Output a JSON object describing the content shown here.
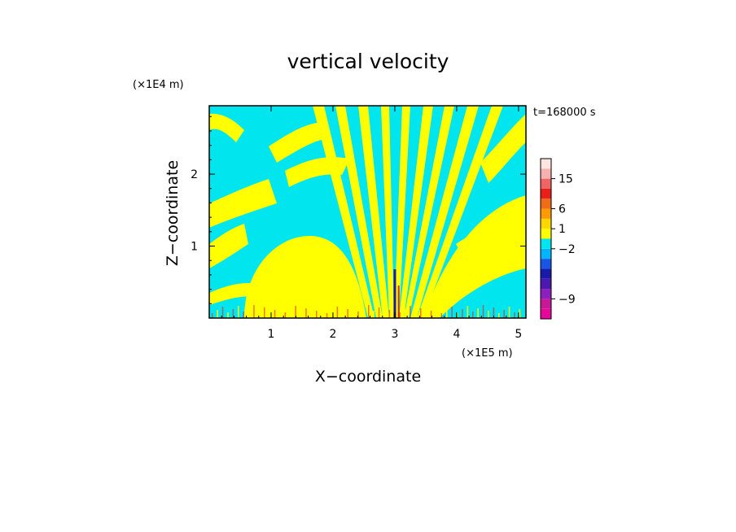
{
  "chart_data": {
    "type": "heatmap",
    "title": "vertical velocity",
    "xlabel": "X−coordinate",
    "ylabel": "Z−coordinate",
    "x_unit": "(×1E5 m)",
    "y_unit": "(×1E4 m)",
    "time_label": "t=168000 s",
    "xlim": [
      0,
      5.12
    ],
    "ylim": [
      0,
      2.95
    ],
    "x_ticks": [
      1,
      2,
      3,
      4,
      5
    ],
    "x_tick_labels": [
      "1",
      "2",
      "3",
      "4",
      "5"
    ],
    "y_ticks": [
      1,
      2
    ],
    "y_tick_labels": [
      "1",
      "2"
    ],
    "field_colors": {
      "positive": "#ffff00",
      "negative": "#00e5ee"
    },
    "colorbar": {
      "levels": [
        {
          "color": "#e6079a"
        },
        {
          "color": "#c81898"
        },
        {
          "color": "#8b1fbf"
        },
        {
          "color": "#4b18b0"
        },
        {
          "color": "#1a1aa8"
        },
        {
          "color": "#1a56e6"
        },
        {
          "color": "#00b4ff"
        },
        {
          "color": "#00e5ee"
        },
        {
          "color": "#ffff00"
        },
        {
          "color": "#ffd700"
        },
        {
          "color": "#ff9a00"
        },
        {
          "color": "#f06c16"
        },
        {
          "color": "#e8201a"
        },
        {
          "color": "#ef6464"
        },
        {
          "color": "#f5b0b0"
        },
        {
          "color": "#fde6e0"
        }
      ],
      "tick_labels": [
        {
          "label": "15",
          "level": 14
        },
        {
          "label": "6",
          "level": 11
        },
        {
          "label": "1",
          "level": 9
        },
        {
          "label": "−2",
          "level": 7
        },
        {
          "label": "−9",
          "level": 2
        }
      ]
    }
  }
}
